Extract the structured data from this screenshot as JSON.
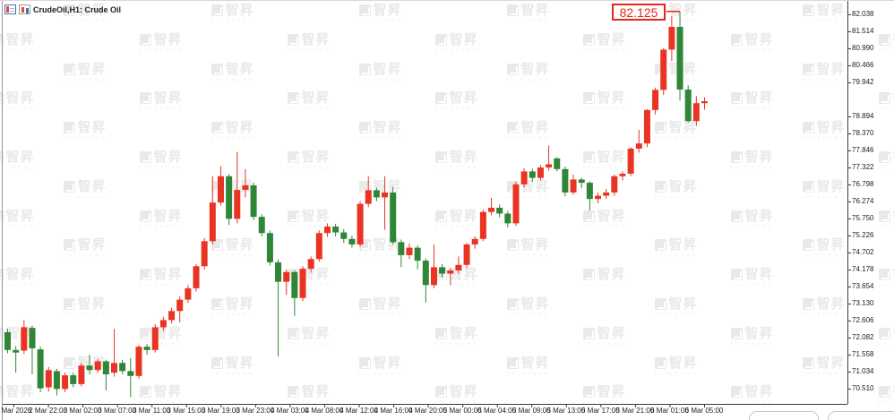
{
  "window": {
    "title": "CrudeOil,H1: Crude Oil"
  },
  "callout": {
    "value": "82.125",
    "color": "#e8261d"
  },
  "watermark": {
    "logo": "zhisheng-logo",
    "text": "智昇",
    "sub_text": "ZHISHENG"
  },
  "chart_data": {
    "type": "candlestick",
    "symbol": "CrudeOil",
    "timeframe": "H1",
    "description": "Crude Oil",
    "marked_high": 82.125,
    "last_close": 79.36,
    "up_color": "#ea3423",
    "down_color": "#2e8636",
    "axis_color": "#3c3c3c",
    "grid": false,
    "legend_position": "none",
    "visible_price_range": [
      70.04,
      82.45
    ],
    "price_axis_labels": [
      "82.038",
      "81.514",
      "80.990",
      "80.466",
      "79.942",
      "78.894",
      "78.370",
      "77.846",
      "77.322",
      "76.798",
      "76.274",
      "75.750",
      "75.226",
      "74.702",
      "74.178",
      "73.654",
      "73.130",
      "72.606",
      "72.082",
      "71.558",
      "71.034",
      "70.510"
    ],
    "time_axis_labels": [
      "2 Mar 2026",
      "2 Mar 22:00",
      "3 Mar 02:00",
      "3 Mar 07:00",
      "3 Mar 11:00",
      "3 Mar 15:00",
      "3 Mar 19:00",
      "3 Mar 23:00",
      "4 Mar 03:00",
      "4 Mar 08:00",
      "4 Mar 12:00",
      "4 Mar 16:00",
      "4 Mar 20:00",
      "5 Mar 00:00",
      "5 Mar 04:00",
      "5 Mar 09:00",
      "5 Mar 13:00",
      "5 Mar 17:00",
      "5 Mar 21:00",
      "6 Mar 01:00",
      "6 Mar 05:00"
    ],
    "ohlc": [
      [
        72.25,
        72.35,
        71.6,
        71.7
      ],
      [
        71.7,
        71.82,
        71.0,
        71.62
      ],
      [
        71.68,
        72.62,
        71.58,
        72.4
      ],
      [
        72.38,
        72.45,
        70.95,
        71.75
      ],
      [
        71.72,
        71.8,
        70.4,
        70.52
      ],
      [
        70.55,
        71.18,
        70.42,
        71.08
      ],
      [
        71.05,
        71.12,
        70.3,
        70.5
      ],
      [
        70.5,
        71.0,
        70.4,
        70.92
      ],
      [
        70.92,
        71.0,
        70.55,
        70.65
      ],
      [
        70.65,
        71.3,
        70.58,
        71.22
      ],
      [
        71.22,
        71.55,
        70.95,
        71.08
      ],
      [
        71.08,
        71.42,
        71.0,
        71.35
      ],
      [
        71.35,
        71.4,
        70.45,
        70.95
      ],
      [
        71.0,
        72.35,
        70.88,
        71.3
      ],
      [
        71.3,
        71.4,
        70.95,
        71.05
      ],
      [
        71.05,
        71.45,
        70.25,
        70.9
      ],
      [
        70.9,
        71.85,
        70.82,
        71.8
      ],
      [
        71.8,
        71.88,
        71.55,
        71.7
      ],
      [
        71.7,
        72.5,
        71.62,
        72.4
      ],
      [
        72.4,
        72.72,
        72.28,
        72.62
      ],
      [
        72.62,
        73.0,
        72.52,
        72.9
      ],
      [
        72.9,
        73.35,
        72.55,
        73.25
      ],
      [
        73.25,
        73.7,
        73.15,
        73.6
      ],
      [
        73.6,
        74.35,
        73.5,
        74.28
      ],
      [
        74.28,
        75.15,
        74.18,
        75.05
      ],
      [
        75.05,
        77.05,
        74.95,
        76.24
      ],
      [
        76.24,
        77.36,
        76.15,
        77.05
      ],
      [
        77.05,
        77.12,
        75.55,
        75.74
      ],
      [
        75.74,
        77.8,
        75.6,
        76.63
      ],
      [
        76.63,
        77.27,
        76.4,
        76.77
      ],
      [
        76.77,
        76.85,
        75.7,
        75.8
      ],
      [
        75.8,
        75.88,
        75.2,
        75.3
      ],
      [
        75.3,
        75.38,
        74.3,
        74.4
      ],
      [
        74.4,
        74.48,
        71.5,
        73.8
      ],
      [
        73.8,
        74.18,
        73.4,
        74.1
      ],
      [
        74.1,
        74.15,
        72.75,
        73.3
      ],
      [
        73.3,
        74.28,
        73.2,
        74.2
      ],
      [
        74.2,
        74.58,
        74.08,
        74.5
      ],
      [
        74.5,
        75.38,
        74.42,
        75.3
      ],
      [
        75.3,
        75.6,
        75.18,
        75.5
      ],
      [
        75.5,
        75.58,
        75.2,
        75.32
      ],
      [
        75.32,
        75.42,
        75.0,
        75.12
      ],
      [
        75.12,
        75.22,
        74.85,
        74.95
      ],
      [
        74.95,
        76.28,
        74.88,
        76.2
      ],
      [
        76.2,
        77.05,
        76.1,
        76.62
      ],
      [
        76.62,
        76.7,
        76.28,
        76.4
      ],
      [
        76.4,
        77.05,
        75.4,
        76.55
      ],
      [
        76.55,
        76.72,
        74.95,
        75.02
      ],
      [
        75.02,
        75.1,
        74.25,
        74.62
      ],
      [
        74.62,
        74.98,
        74.5,
        74.85
      ],
      [
        74.85,
        74.92,
        74.18,
        74.45
      ],
      [
        74.45,
        74.52,
        73.16,
        73.7
      ],
      [
        73.7,
        74.95,
        73.6,
        74.25
      ],
      [
        74.25,
        74.35,
        73.92,
        74.05
      ],
      [
        74.05,
        74.22,
        73.7,
        74.15
      ],
      [
        74.15,
        74.58,
        74.05,
        74.32
      ],
      [
        74.32,
        75.0,
        74.22,
        74.95
      ],
      [
        74.95,
        75.2,
        74.82,
        75.12
      ],
      [
        75.12,
        76.02,
        75.05,
        75.95
      ],
      [
        75.95,
        76.38,
        75.85,
        76.08
      ],
      [
        76.08,
        76.18,
        75.78,
        75.9
      ],
      [
        75.9,
        75.98,
        75.48,
        75.6
      ],
      [
        75.6,
        76.88,
        75.52,
        76.8
      ],
      [
        76.8,
        77.3,
        76.7,
        77.2
      ],
      [
        77.2,
        77.28,
        76.88,
        77.0
      ],
      [
        77.0,
        77.4,
        76.92,
        77.32
      ],
      [
        77.32,
        78.0,
        77.22,
        77.42
      ],
      [
        77.6,
        77.64,
        77.2,
        77.27
      ],
      [
        77.27,
        77.35,
        76.43,
        76.55
      ],
      [
        76.55,
        77.1,
        76.48,
        76.95
      ],
      [
        76.95,
        77.0,
        76.68,
        76.85
      ],
      [
        76.85,
        76.9,
        76.0,
        76.35
      ],
      [
        76.35,
        76.55,
        76.22,
        76.45
      ],
      [
        76.45,
        76.66,
        76.35,
        76.55
      ],
      [
        76.55,
        77.1,
        76.45,
        77.05
      ],
      [
        77.05,
        77.2,
        76.92,
        77.13
      ],
      [
        77.13,
        77.95,
        77.05,
        77.9
      ],
      [
        77.9,
        78.48,
        77.78,
        78.06
      ],
      [
        78.06,
        79.12,
        77.95,
        79.09
      ],
      [
        79.09,
        79.78,
        78.95,
        79.71
      ],
      [
        79.71,
        81.0,
        79.55,
        80.95
      ],
      [
        80.95,
        81.98,
        80.6,
        81.65
      ],
      [
        81.65,
        82.125,
        79.38,
        79.72
      ],
      [
        79.72,
        79.85,
        78.7,
        78.75
      ],
      [
        78.75,
        79.52,
        78.6,
        79.3
      ],
      [
        79.3,
        79.48,
        79.1,
        79.36
      ]
    ]
  }
}
